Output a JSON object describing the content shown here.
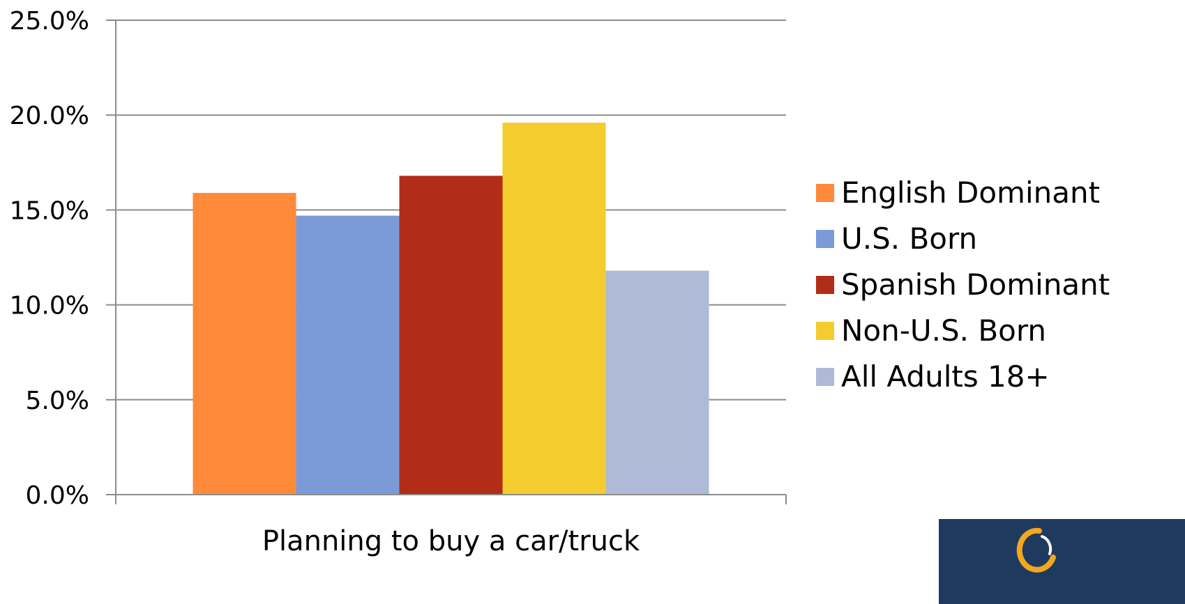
{
  "chart_data": {
    "type": "bar",
    "categories": [
      "Planning to buy a car/truck"
    ],
    "series": [
      {
        "name": "English Dominant",
        "values": [
          15.9
        ],
        "color": "#FF8A3A"
      },
      {
        "name": "U.S. Born",
        "values": [
          14.7
        ],
        "color": "#7A9BD8"
      },
      {
        "name": "Spanish Dominant",
        "values": [
          16.8
        ],
        "color": "#B22D17"
      },
      {
        "name": "Non-U.S. Born",
        "values": [
          19.6
        ],
        "color": "#F4CC2E"
      },
      {
        "name": "All Adults 18+",
        "values": [
          11.8
        ],
        "color": "#AEBAD6"
      }
    ],
    "yticks": [
      "0.0%",
      "5.0%",
      "10.0%",
      "15.0%",
      "20.0%",
      "25.0%"
    ],
    "ylim": [
      0,
      25
    ],
    "grid": true,
    "legend_position": "right",
    "logo_icon": "orbit-logo-icon",
    "logo_background": "#1F3A5F"
  }
}
